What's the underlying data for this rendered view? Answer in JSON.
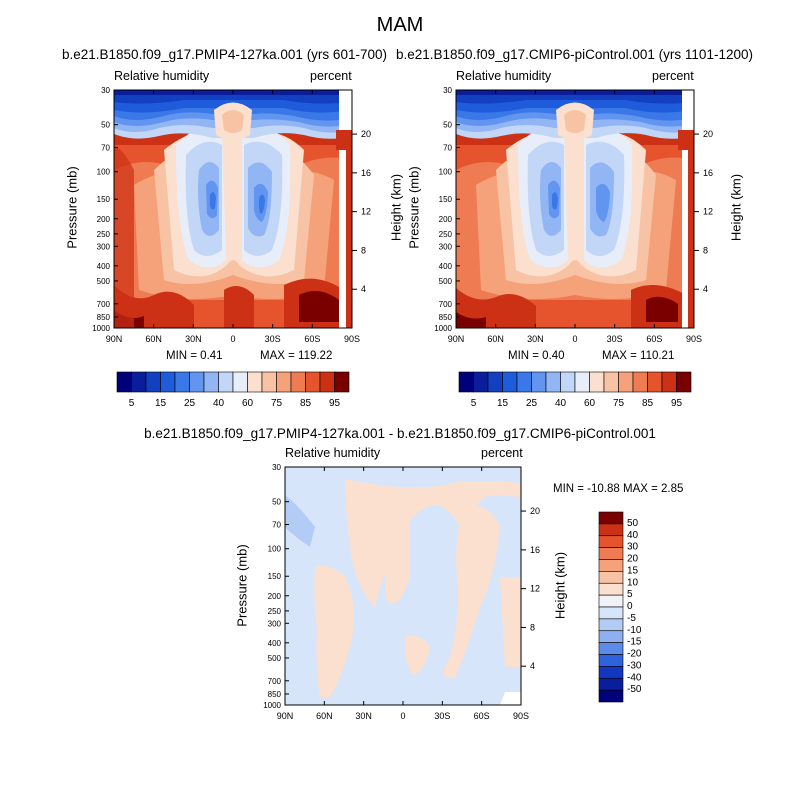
{
  "figure": {
    "title": "MAM"
  },
  "panels": [
    {
      "title": "b.e21.B1850.f09_g17.PMIP4-127ka.001 (yrs 601-700)",
      "left_label": "Relative humidity",
      "right_label": "percent",
      "min_label": "MIN =   0.41",
      "max_label": "MAX = 119.22"
    },
    {
      "title": "b.e21.B1850.f09_g17.CMIP6-piControl.001 (yrs 1101-1200)",
      "left_label": "Relative humidity",
      "right_label": "percent",
      "min_label": "MIN =   0.40",
      "max_label": "MAX = 110.21"
    },
    {
      "title": "b.e21.B1850.f09_g17.PMIP4-127ka.001 - b.e21.B1850.f09_g17.CMIP6-piControl.001",
      "left_label": "Relative humidity",
      "right_label": "percent",
      "min_label": "MIN = -10.88",
      "max_label": "MAX =   2.85"
    }
  ],
  "chart_data": [
    {
      "type": "heatmap",
      "title": "b.e21.B1850.f09_g17.PMIP4-127ka.001 (yrs 601-700)",
      "xlabel": "",
      "ylabel": "Pressure (mb)",
      "y2label": "Height (km)",
      "x_ticks": [
        "90N",
        "60N",
        "30N",
        "0",
        "30S",
        "60S",
        "90S"
      ],
      "y_ticks": [
        "30",
        "50",
        "70",
        "100",
        "150",
        "200",
        "250",
        "300",
        "400",
        "500",
        "700",
        "850",
        "1000"
      ],
      "y_tick_values": [
        30,
        50,
        70,
        100,
        150,
        200,
        250,
        300,
        400,
        500,
        700,
        850,
        1000
      ],
      "y2_ticks": [
        "20",
        "16",
        "12",
        "8",
        "4"
      ],
      "y2_tick_values": [
        20,
        16,
        12,
        8,
        4
      ],
      "y_scale": "log",
      "y_reversed": false,
      "colorbar_labels": [
        "5",
        "15",
        "25",
        "40",
        "60",
        "75",
        "85",
        "95"
      ],
      "colorbar_levels": [
        5,
        10,
        15,
        20,
        25,
        30,
        40,
        50,
        60,
        70,
        75,
        80,
        85,
        90,
        95
      ],
      "colorbar_colors": [
        "#00007a",
        "#0a1e9c",
        "#1240c0",
        "#1e5cdc",
        "#3a78e8",
        "#6295ef",
        "#92b5f3",
        "#c2d6f7",
        "#e8eef9",
        "#fbe0d0",
        "#f8c3a5",
        "#f5a27b",
        "#ef7b52",
        "#e5542c",
        "#cc3015",
        "#7a0000"
      ],
      "colorbar_orientation": "horizontal",
      "grid": false,
      "min": 0.41,
      "max": 119.22
    },
    {
      "type": "heatmap",
      "title": "b.e21.B1850.f09_g17.CMIP6-piControl.001 (yrs 1101-1200)",
      "xlabel": "",
      "ylabel": "Pressure (mb)",
      "y2label": "Height (km)",
      "x_ticks": [
        "90N",
        "60N",
        "30N",
        "0",
        "30S",
        "60S",
        "90S"
      ],
      "y_ticks": [
        "30",
        "50",
        "70",
        "100",
        "150",
        "200",
        "250",
        "300",
        "400",
        "500",
        "700",
        "850",
        "1000"
      ],
      "y_tick_values": [
        30,
        50,
        70,
        100,
        150,
        200,
        250,
        300,
        400,
        500,
        700,
        850,
        1000
      ],
      "y2_ticks": [
        "20",
        "16",
        "12",
        "8",
        "4"
      ],
      "y2_tick_values": [
        20,
        16,
        12,
        8,
        4
      ],
      "y_scale": "log",
      "colorbar_labels": [
        "5",
        "15",
        "25",
        "40",
        "60",
        "75",
        "85",
        "95"
      ],
      "colorbar_levels": [
        5,
        10,
        15,
        20,
        25,
        30,
        40,
        50,
        60,
        70,
        75,
        80,
        85,
        90,
        95
      ],
      "colorbar_colors": [
        "#00007a",
        "#0a1e9c",
        "#1240c0",
        "#1e5cdc",
        "#3a78e8",
        "#6295ef",
        "#92b5f3",
        "#c2d6f7",
        "#e8eef9",
        "#fbe0d0",
        "#f8c3a5",
        "#f5a27b",
        "#ef7b52",
        "#e5542c",
        "#cc3015",
        "#7a0000"
      ],
      "colorbar_orientation": "horizontal",
      "grid": false,
      "min": 0.4,
      "max": 110.21
    },
    {
      "type": "heatmap",
      "title": "b.e21.B1850.f09_g17.PMIP4-127ka.001 - b.e21.B1850.f09_g17.CMIP6-piControl.001",
      "xlabel": "",
      "ylabel": "Pressure (mb)",
      "y2label": "Height (km)",
      "x_ticks": [
        "90N",
        "60N",
        "30N",
        "0",
        "30S",
        "60S",
        "90S"
      ],
      "y_ticks": [
        "30",
        "50",
        "70",
        "100",
        "150",
        "200",
        "250",
        "300",
        "400",
        "500",
        "700",
        "850",
        "1000"
      ],
      "y_tick_values": [
        30,
        50,
        70,
        100,
        150,
        200,
        250,
        300,
        400,
        500,
        700,
        850,
        1000
      ],
      "y2_ticks": [
        "20",
        "16",
        "12",
        "8",
        "4"
      ],
      "y2_tick_values": [
        20,
        16,
        12,
        8,
        4
      ],
      "y_scale": "log",
      "colorbar_labels": [
        "50",
        "40",
        "30",
        "20",
        "15",
        "10",
        "5",
        "0",
        "-5",
        "-10",
        "-15",
        "-20",
        "-30",
        "-40",
        "-50"
      ],
      "colorbar_levels": [
        50,
        40,
        30,
        20,
        15,
        10,
        5,
        0,
        -5,
        -10,
        -15,
        -20,
        -30,
        -40,
        -50
      ],
      "colorbar_colors": [
        "#7a0000",
        "#cc3015",
        "#e5542c",
        "#ef7b52",
        "#f5a27b",
        "#f8c3a5",
        "#fbe0d0",
        "#f0f2f8",
        "#d6e5f9",
        "#b3ccf5",
        "#8eb0f0",
        "#5d8bea",
        "#2f63de",
        "#1238c0",
        "#0a1e9c",
        "#00007a"
      ],
      "colorbar_orientation": "vertical",
      "grid": false,
      "min": -10.88,
      "max": 2.85
    }
  ]
}
